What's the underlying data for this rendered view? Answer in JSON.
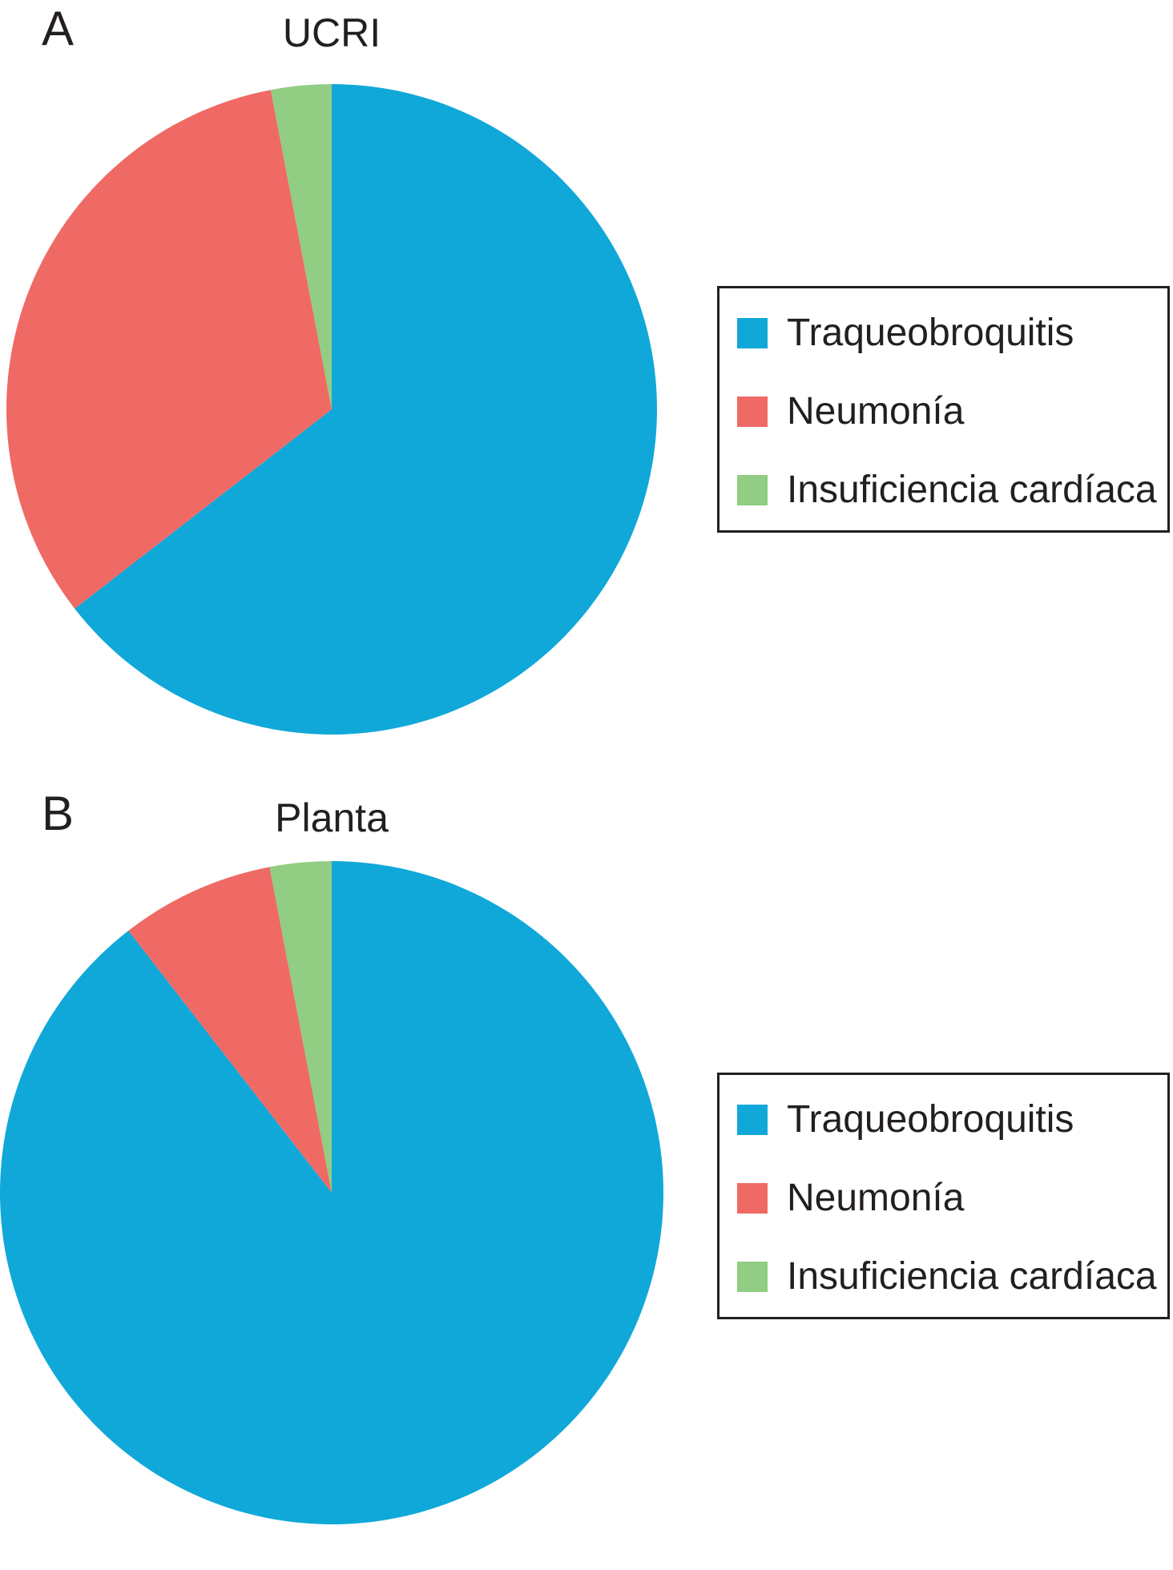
{
  "charts": [
    {
      "id": "a",
      "panel_letter": "A",
      "title": "UCRI",
      "chart_data": {
        "type": "pie",
        "title": "UCRI",
        "slices": [
          {
            "label": "Traqueobroquitis",
            "value": 64.5,
            "color": "#10a8d8"
          },
          {
            "label": "Neumonía",
            "value": 32.5,
            "color": "#ef6a65"
          },
          {
            "label": "Insuficiencia cardíaca",
            "value": 3.0,
            "color": "#91cd82"
          }
        ],
        "legend_position": "right"
      }
    },
    {
      "id": "b",
      "panel_letter": "B",
      "title": "Planta",
      "chart_data": {
        "type": "pie",
        "title": "Planta",
        "slices": [
          {
            "label": "Traqueobroquitis",
            "value": 89.5,
            "color": "#10a8d8"
          },
          {
            "label": "Neumonía",
            "value": 7.5,
            "color": "#ef6a65"
          },
          {
            "label": "Insuficiencia cardíaca",
            "value": 3.0,
            "color": "#91cd82"
          }
        ],
        "legend_position": "right"
      }
    }
  ]
}
